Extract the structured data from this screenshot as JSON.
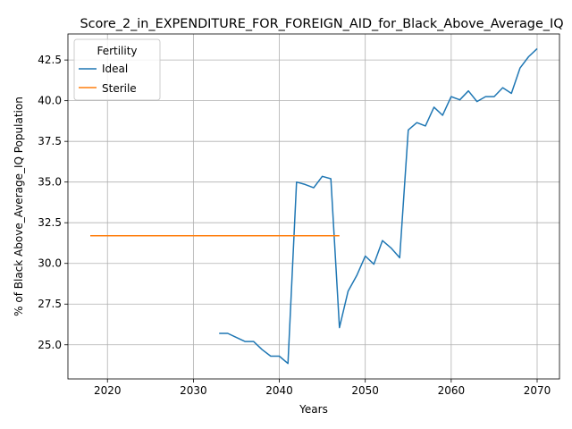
{
  "chart_data": {
    "type": "line",
    "title": "Score_2_in_EXPENDITURE_FOR_FOREIGN_AID_for_Black_Above_Average_IQ",
    "xlabel": "Years",
    "ylabel": "% of Black Above_Average_IQ Population",
    "xlim": [
      2015.4,
      2072.6
    ],
    "ylim": [
      22.9,
      44.1
    ],
    "xticks": [
      2020,
      2030,
      2040,
      2050,
      2060,
      2070
    ],
    "xtick_labels": [
      "2020",
      "2030",
      "2040",
      "2050",
      "2060",
      "2070"
    ],
    "yticks": [
      25.0,
      27.5,
      30.0,
      32.5,
      35.0,
      37.5,
      40.0,
      42.5
    ],
    "ytick_labels": [
      "25.0",
      "27.5",
      "30.0",
      "32.5",
      "35.0",
      "37.5",
      "40.0",
      "42.5"
    ],
    "grid": true,
    "legend": {
      "title": "Fertility",
      "position": "top-left"
    },
    "series": [
      {
        "name": "Ideal",
        "color": "#1f77b4",
        "x": [
          2033,
          2034,
          2035,
          2036,
          2037,
          2038,
          2039,
          2040,
          2041,
          2042,
          2043,
          2044,
          2045,
          2046,
          2047,
          2048,
          2049,
          2050,
          2051,
          2052,
          2053,
          2054,
          2055,
          2056,
          2057,
          2058,
          2059,
          2060,
          2061,
          2062,
          2063,
          2064,
          2065,
          2066,
          2067,
          2068,
          2069,
          2070
        ],
        "y": [
          25.7,
          25.7,
          25.45,
          25.2,
          25.2,
          24.7,
          24.3,
          24.3,
          23.85,
          35.0,
          34.85,
          34.65,
          35.35,
          35.2,
          26.05,
          28.3,
          29.25,
          30.45,
          29.95,
          31.4,
          30.95,
          30.35,
          38.2,
          38.65,
          38.45,
          39.6,
          39.1,
          40.25,
          40.05,
          40.6,
          39.95,
          40.25,
          40.25,
          40.8,
          40.45,
          42.0,
          42.7,
          43.2
        ]
      },
      {
        "name": "Sterile",
        "color": "#ff7f0e",
        "x": [
          2018,
          2047
        ],
        "y": [
          31.7,
          31.7
        ]
      }
    ]
  }
}
